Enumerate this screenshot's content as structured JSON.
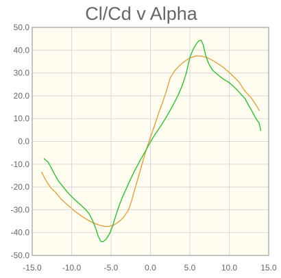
{
  "chart_data": {
    "type": "line",
    "title": "Cl/Cd v Alpha",
    "xlabel": "",
    "ylabel": "",
    "xlim": [
      -15,
      15
    ],
    "ylim": [
      -50,
      50
    ],
    "x_ticks": [
      -15,
      -10,
      -5,
      0,
      5,
      10,
      15
    ],
    "x_tick_labels": [
      "-15.0",
      "-10.0",
      "-5.0",
      "0.0",
      "5.0",
      "10.0",
      "15.0"
    ],
    "y_ticks": [
      50,
      40,
      30,
      20,
      10,
      0,
      -10,
      -20,
      -30,
      -40,
      -50
    ],
    "y_tick_labels": [
      "50.0",
      "40.0",
      "30.0",
      "20.0",
      "10.0",
      "0.0",
      "-10.0",
      "-20.0",
      "-30.0",
      "-40.0",
      "-50.0"
    ],
    "grid": true,
    "series": [
      {
        "color": "#e0a040",
        "points": [
          [
            -13.8,
            -13.5
          ],
          [
            -13.2,
            -17.5
          ],
          [
            -12.6,
            -20.5
          ],
          [
            -12,
            -22.5
          ],
          [
            -11.2,
            -25.8
          ],
          [
            -10.4,
            -28.2
          ],
          [
            -9.6,
            -30.6
          ],
          [
            -8.8,
            -32.6
          ],
          [
            -8,
            -34.4
          ],
          [
            -7.2,
            -35.8
          ],
          [
            -6.4,
            -36.8
          ],
          [
            -5.8,
            -37.3
          ],
          [
            -5.2,
            -37.2
          ],
          [
            -4.6,
            -36.6
          ],
          [
            -4,
            -35.2
          ],
          [
            -3.4,
            -33.2
          ],
          [
            -2.8,
            -30.2
          ],
          [
            -2.4,
            -26.2
          ],
          [
            -2,
            -21.2
          ],
          [
            -1.5,
            -15.2
          ],
          [
            -1,
            -9.2
          ],
          [
            -0.5,
            -3.2
          ],
          [
            0,
            1.8
          ],
          [
            0.5,
            6.8
          ],
          [
            1,
            12
          ],
          [
            1.5,
            16.8
          ],
          [
            2,
            21.8
          ],
          [
            2.5,
            27.8
          ],
          [
            3,
            30.6
          ],
          [
            3.6,
            32.9
          ],
          [
            4.2,
            34.8
          ],
          [
            5,
            36.6
          ],
          [
            5.8,
            37.5
          ],
          [
            6.5,
            37.4
          ],
          [
            7.3,
            36.6
          ],
          [
            8.2,
            34.9
          ],
          [
            9.2,
            32.6
          ],
          [
            10.2,
            29.6
          ],
          [
            11.2,
            26.2
          ],
          [
            12,
            22
          ],
          [
            12.8,
            19
          ],
          [
            13.4,
            16
          ],
          [
            13.8,
            13.6
          ]
        ]
      },
      {
        "color": "#33bb33",
        "points": [
          [
            -13.5,
            -7.6
          ],
          [
            -13,
            -9
          ],
          [
            -12.6,
            -11.5
          ],
          [
            -12.2,
            -14.2
          ],
          [
            -11.7,
            -17.2
          ],
          [
            -11.2,
            -19.4
          ],
          [
            -10.6,
            -22
          ],
          [
            -10,
            -24.2
          ],
          [
            -9.4,
            -26.2
          ],
          [
            -8.8,
            -28
          ],
          [
            -8.3,
            -29.6
          ],
          [
            -7.8,
            -31.6
          ],
          [
            -7.4,
            -34.2
          ],
          [
            -7,
            -37.6
          ],
          [
            -6.6,
            -41.8
          ],
          [
            -6.3,
            -43.8
          ],
          [
            -6,
            -44
          ],
          [
            -5.6,
            -42.8
          ],
          [
            -5.2,
            -40.6
          ],
          [
            -4.8,
            -37.2
          ],
          [
            -4.4,
            -32.6
          ],
          [
            -4,
            -28.4
          ],
          [
            -3.5,
            -24
          ],
          [
            -3,
            -20.2
          ],
          [
            -2.5,
            -16.4
          ],
          [
            -2,
            -12.8
          ],
          [
            -1.5,
            -9.6
          ],
          [
            -1,
            -6.5
          ],
          [
            -0.5,
            -3.4
          ],
          [
            0,
            -0.2
          ],
          [
            0.5,
            2.6
          ],
          [
            1,
            5.2
          ],
          [
            1.5,
            7.8
          ],
          [
            2,
            10.6
          ],
          [
            2.5,
            13.6
          ],
          [
            3,
            16.8
          ],
          [
            3.5,
            20.2
          ],
          [
            4,
            24.2
          ],
          [
            4.5,
            29.4
          ],
          [
            5,
            36.8
          ],
          [
            5.4,
            40.2
          ],
          [
            5.8,
            42.6
          ],
          [
            6.1,
            44
          ],
          [
            6.4,
            44.4
          ],
          [
            6.7,
            42.4
          ],
          [
            7,
            37.8
          ],
          [
            7.4,
            34
          ],
          [
            7.9,
            31.2
          ],
          [
            8.5,
            29.4
          ],
          [
            9,
            28
          ],
          [
            9.5,
            26.8
          ],
          [
            10,
            25.8
          ],
          [
            10.5,
            24.2
          ],
          [
            11,
            22.6
          ],
          [
            11.5,
            20.6
          ],
          [
            12,
            18.8
          ],
          [
            12.4,
            16.2
          ],
          [
            12.8,
            13.8
          ],
          [
            13.2,
            11.2
          ],
          [
            13.5,
            9.4
          ],
          [
            13.8,
            8
          ],
          [
            14,
            4.8
          ]
        ]
      }
    ]
  }
}
